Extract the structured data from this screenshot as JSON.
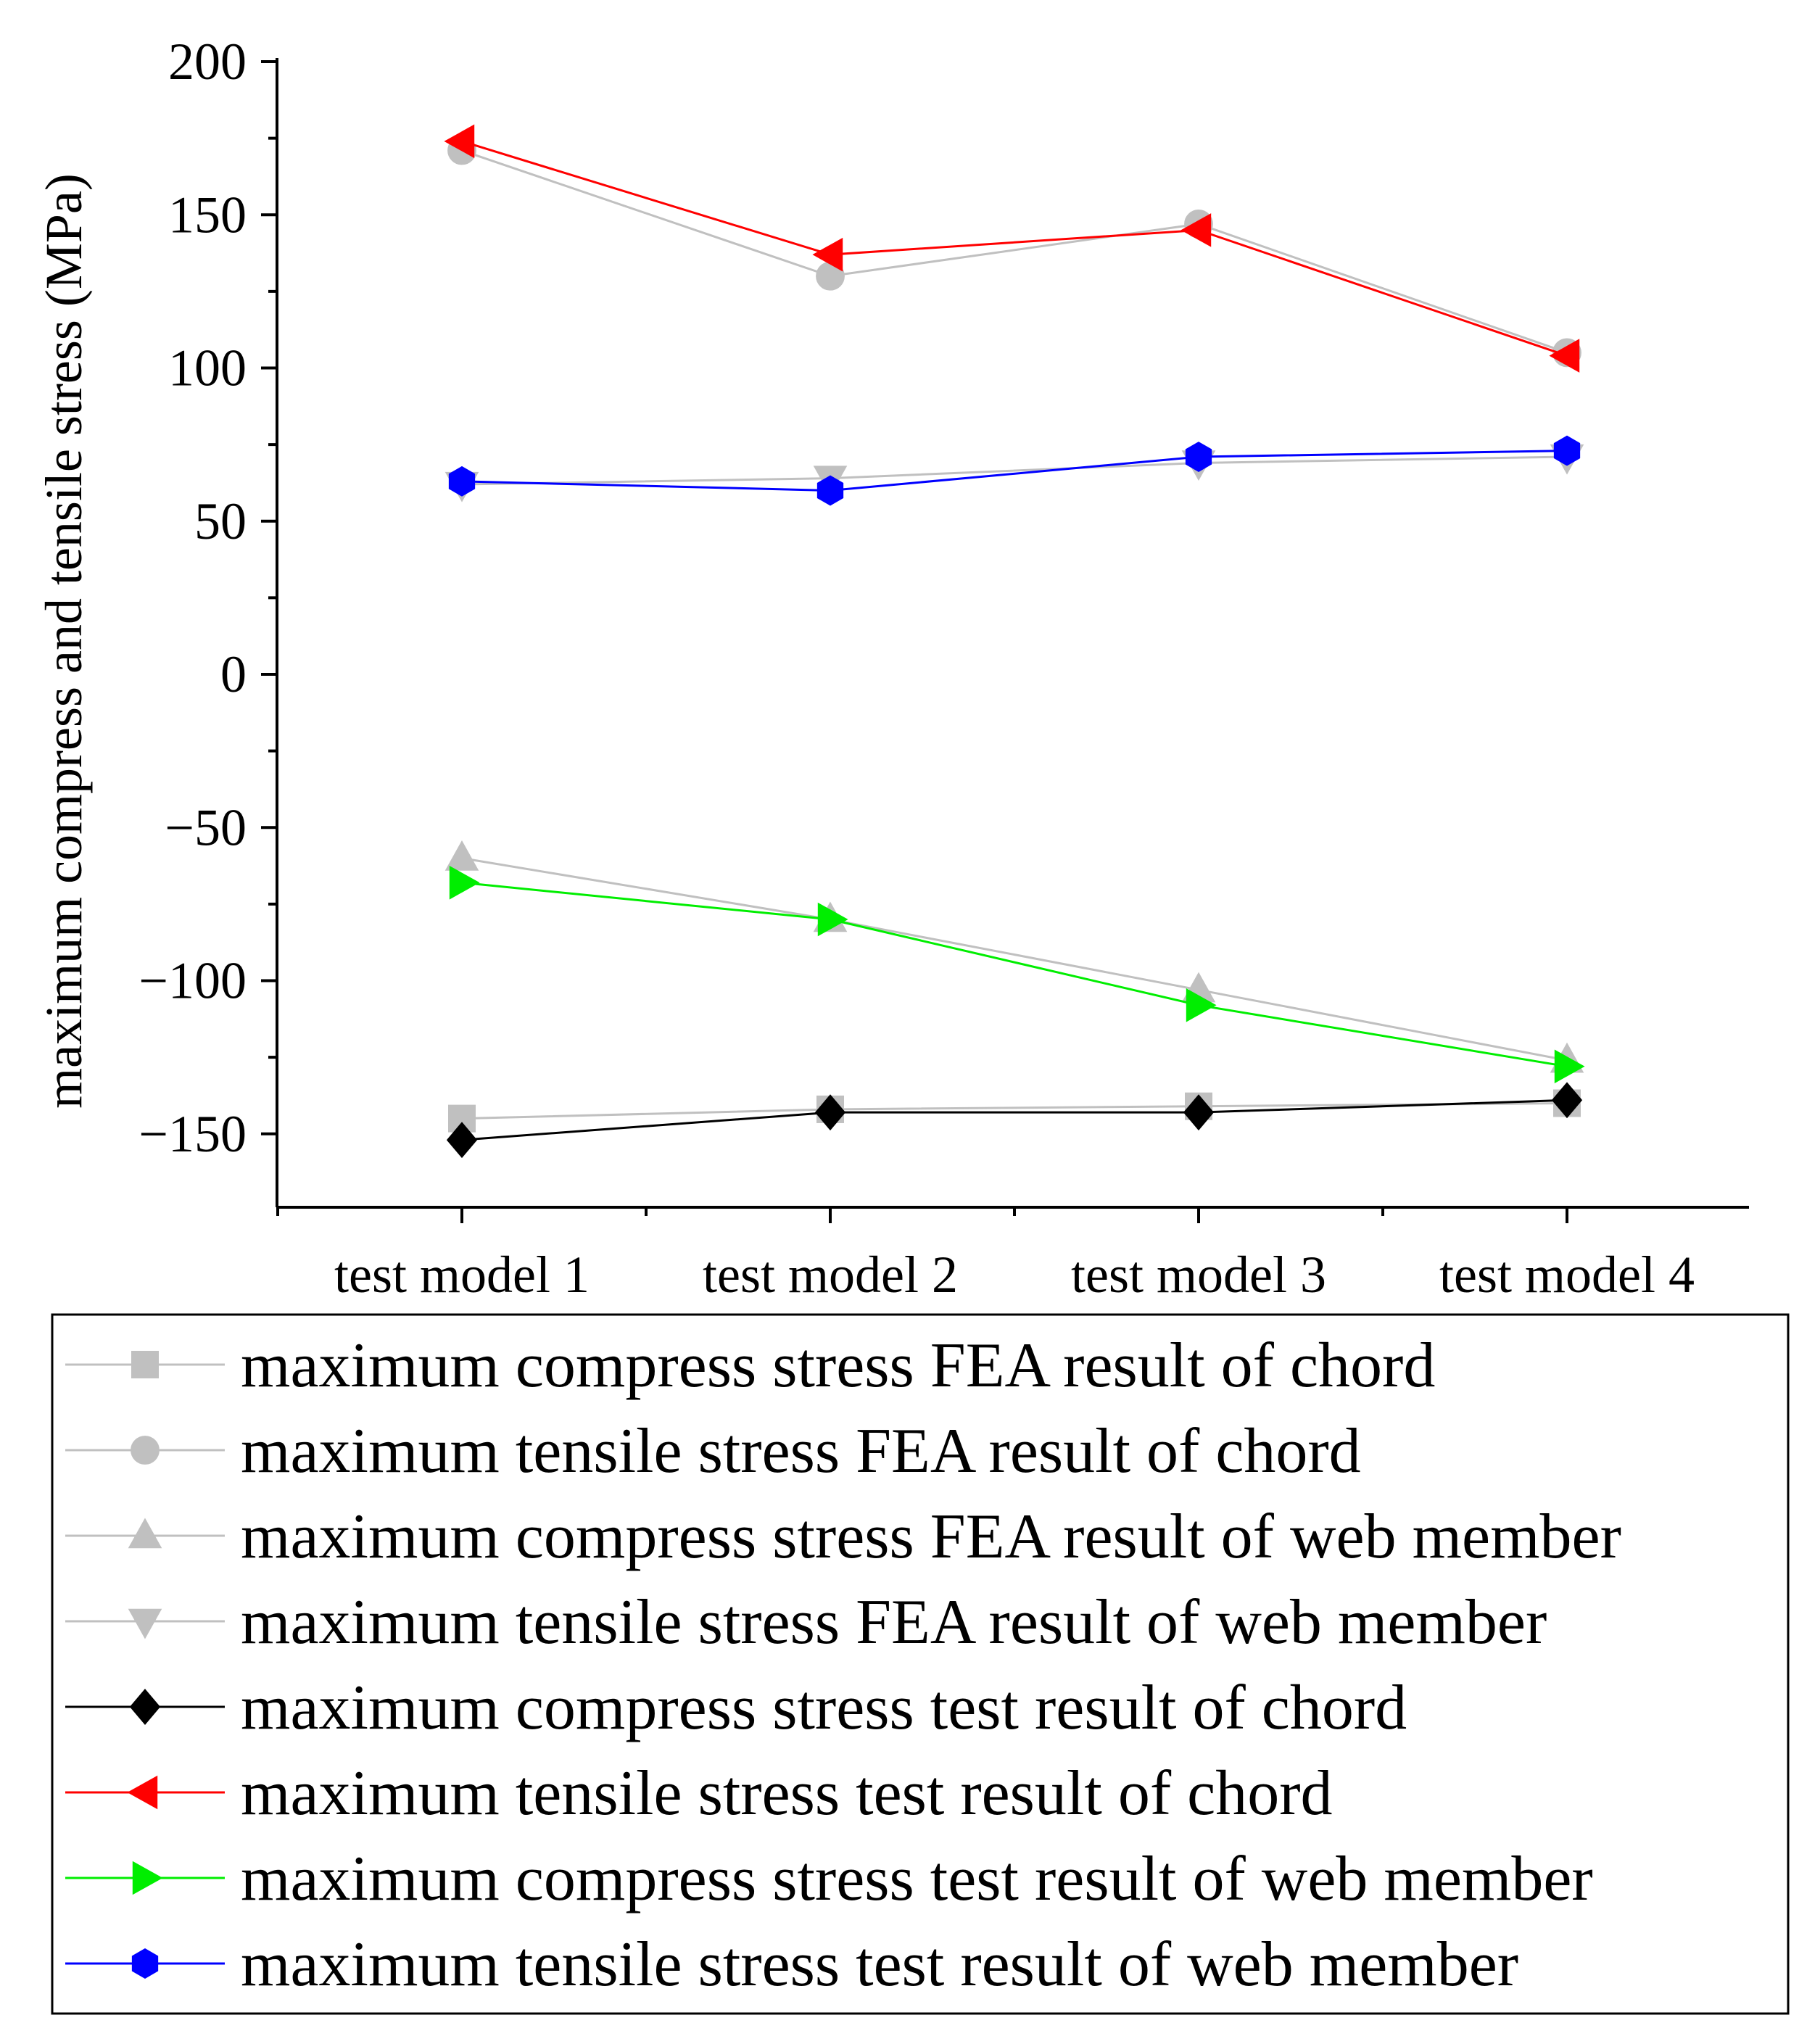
{
  "chart_data": {
    "type": "line",
    "title": "",
    "xlabel": "",
    "ylabel": "maximum compress and tensile stress (MPa)",
    "categories": [
      "test model 1",
      "test model 2",
      "test model 3",
      "test model 4"
    ],
    "ylim": [
      -175,
      200
    ],
    "yticks": [
      200,
      150,
      100,
      50,
      0,
      -50,
      -100,
      -150
    ],
    "ytick_labels": [
      "200",
      "150",
      "100",
      "50",
      "0",
      "−50",
      "−100",
      "−150"
    ],
    "grid": false,
    "legend_position": "bottom",
    "series": [
      {
        "name": "maximum compress stress FEA result of chord",
        "marker": "square",
        "color": "#c0c0c0",
        "values": [
          -145,
          -142,
          -141,
          -140
        ]
      },
      {
        "name": "maximum tensile stress FEA result of chord",
        "marker": "circle",
        "color": "#c0c0c0",
        "values": [
          171,
          130,
          147,
          105
        ]
      },
      {
        "name": "maximum compress stress FEA result of web member",
        "marker": "triangle-up",
        "color": "#c0c0c0",
        "values": [
          -60,
          -80,
          -103,
          -126
        ]
      },
      {
        "name": "maximum tensile stress FEA result of web member",
        "marker": "triangle-down",
        "color": "#c0c0c0",
        "values": [
          62,
          64,
          69,
          71
        ]
      },
      {
        "name": "maximum compress stress test result of chord",
        "marker": "diamond",
        "color": "#000000",
        "values": [
          -152,
          -143,
          -143,
          -139
        ]
      },
      {
        "name": "maximum tensile stress test result of chord",
        "marker": "triangle-left",
        "color": "#ff0000",
        "values": [
          174,
          137,
          145,
          104
        ]
      },
      {
        "name": "maximum compress stress test result of web member",
        "marker": "triangle-right",
        "color": "#00ee00",
        "values": [
          -68,
          -80,
          -108,
          -128
        ]
      },
      {
        "name": "maximum tensile stress test result of web member",
        "marker": "hexagon",
        "color": "#0000ff",
        "values": [
          63,
          60,
          71,
          73
        ]
      }
    ]
  }
}
